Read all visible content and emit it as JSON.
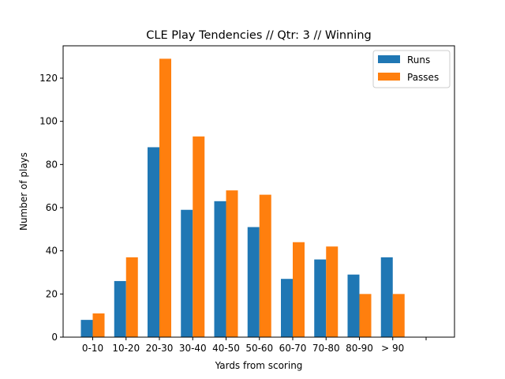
{
  "chart_data": {
    "type": "bar",
    "title": "CLE Play Tendencies // Qtr: 3 // Winning",
    "xlabel": "Yards from scoring",
    "ylabel": "Number of plays",
    "categories": [
      "0-10",
      "10-20",
      "20-30",
      "30-40",
      "40-50",
      "50-60",
      "60-70",
      "70-80",
      "80-90",
      "> 90",
      ""
    ],
    "series": [
      {
        "name": "Runs",
        "color": "#1f77b4",
        "values": [
          8,
          26,
          88,
          59,
          63,
          51,
          27,
          36,
          29,
          37,
          null
        ]
      },
      {
        "name": "Passes",
        "color": "#ff7f0e",
        "values": [
          11,
          37,
          129,
          93,
          68,
          66,
          44,
          42,
          20,
          20,
          null
        ]
      }
    ],
    "ylim": [
      0,
      135
    ],
    "yticks": [
      0,
      20,
      40,
      60,
      80,
      100,
      120
    ],
    "grid": false,
    "legend_position": "top-right"
  }
}
